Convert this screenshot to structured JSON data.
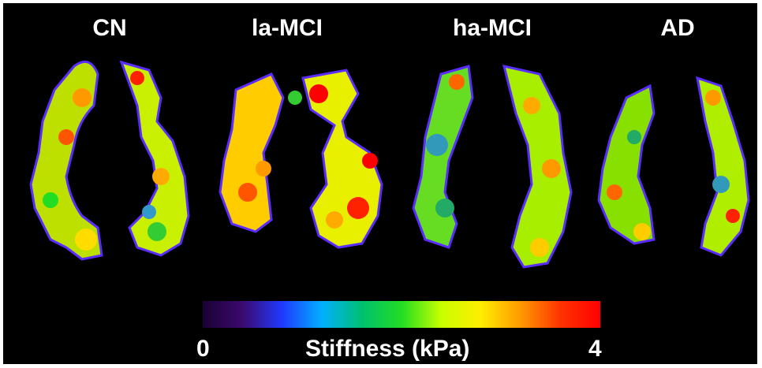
{
  "panels": [
    {
      "label": "CN"
    },
    {
      "label": "la-MCI"
    },
    {
      "label": "ha-MCI"
    },
    {
      "label": "AD"
    }
  ],
  "colorbar": {
    "min_label": "0",
    "max_label": "4",
    "title": "Stiffness (kPa)",
    "colors": [
      "#1a0033",
      "#3b0a6e",
      "#1f3aff",
      "#00b0ff",
      "#00c070",
      "#22dd22",
      "#c8ff00",
      "#ffee00",
      "#ff9900",
      "#ff3300",
      "#ff0000"
    ]
  }
}
